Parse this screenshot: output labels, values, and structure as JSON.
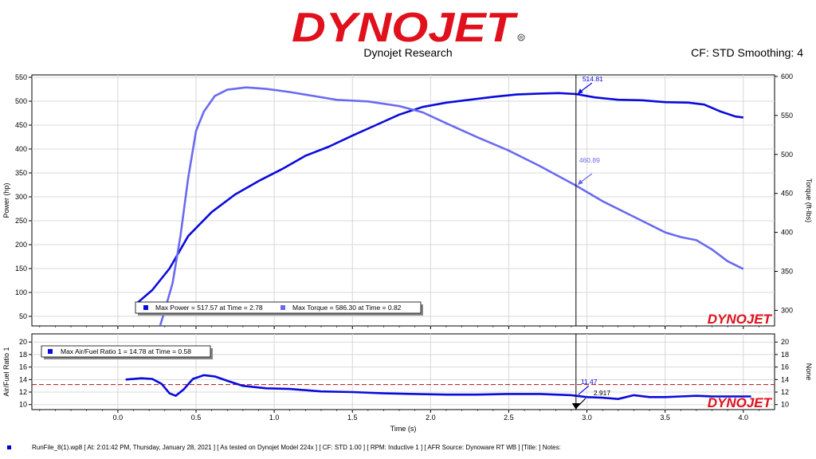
{
  "header": {
    "logo_text": "DYNOJET",
    "subtitle": "Dynojet Research",
    "cf_info": "CF: STD Smoothing: 4"
  },
  "colors": {
    "power": "#0a0adc",
    "torque": "#6a6af0",
    "afr": "#0a0adc",
    "logo_red": "#e0101c",
    "ref_line": "#b01010"
  },
  "footer": {
    "text": "RunFile_8(1).wp8  [ At: 2:01:42 PM, Thursday, January 28, 2021 ] [ As tested on Dynojet Model 224x ] [ CF: STD 1.00 ] [ RPM: Inductive 1 ] [ AFR Source: Dynoware RT WB ] [Title: ]   Notes:"
  },
  "chart_data": [
    {
      "type": "line",
      "xlabel": "Time (s)",
      "ylabel": "Power (hp)",
      "ylabel_right": "Torque (ft-lbs)",
      "xlim": [
        -0.55,
        4.2
      ],
      "ylim": [
        30,
        555
      ],
      "ylim_right": [
        280,
        602
      ],
      "x_ticks": [
        "0.0",
        "0.5",
        "1.0",
        "1.5",
        "2.0",
        "2.5",
        "3.0",
        "3.5",
        "4.0"
      ],
      "y_ticks": [
        "50",
        "100",
        "150",
        "200",
        "250",
        "300",
        "350",
        "400",
        "450",
        "500",
        "550"
      ],
      "y_ticks_right": [
        "300",
        "350",
        "400",
        "450",
        "500",
        "550",
        "600"
      ],
      "grid": true,
      "cursor_x": 2.93,
      "cursor_labels": [
        "514.81",
        "460.89"
      ],
      "legend": [
        "Max Power = 517.57 at Time = 2.78",
        "Max Torque = 586.30 at Time = 0.82"
      ],
      "watermark": "DYNOJET",
      "series": [
        {
          "name": "Power",
          "axis": "left",
          "x": [
            0.12,
            0.22,
            0.33,
            0.45,
            0.6,
            0.75,
            0.9,
            1.05,
            1.2,
            1.35,
            1.5,
            1.65,
            1.8,
            1.95,
            2.1,
            2.25,
            2.4,
            2.55,
            2.7,
            2.82,
            2.93,
            3.05,
            3.2,
            3.35,
            3.5,
            3.65,
            3.75,
            3.85,
            3.95,
            4.0
          ],
          "values": [
            77,
            105,
            150,
            218,
            268,
            305,
            333,
            358,
            386,
            405,
            428,
            450,
            472,
            488,
            497,
            503,
            509,
            514,
            516,
            517,
            515,
            508,
            503,
            502,
            498,
            497,
            493,
            479,
            468,
            466
          ]
        },
        {
          "name": "Torque",
          "axis": "right",
          "x": [
            0.27,
            0.3,
            0.35,
            0.4,
            0.45,
            0.5,
            0.55,
            0.62,
            0.7,
            0.82,
            0.95,
            1.1,
            1.25,
            1.4,
            1.6,
            1.8,
            1.95,
            2.1,
            2.3,
            2.5,
            2.7,
            2.93,
            3.1,
            3.3,
            3.5,
            3.6,
            3.7,
            3.8,
            3.9,
            4.0
          ],
          "values": [
            280,
            300,
            335,
            395,
            470,
            530,
            555,
            575,
            583,
            586,
            584,
            580,
            575,
            570,
            568,
            562,
            554,
            540,
            522,
            505,
            485,
            460,
            440,
            420,
            400,
            394,
            390,
            378,
            363,
            353
          ]
        }
      ]
    },
    {
      "type": "line",
      "xlabel": "Time (s)",
      "ylabel": "Air/Fuel Ratio 1",
      "ylabel_right": "None",
      "xlim": [
        -0.55,
        4.2
      ],
      "ylim": [
        9.2,
        21.3
      ],
      "ylim_right": [
        9.2,
        21.3
      ],
      "y_ticks": [
        "10",
        "12",
        "14",
        "16",
        "18",
        "20"
      ],
      "y_ticks_right": [
        "10",
        "12",
        "14",
        "16",
        "18",
        "20"
      ],
      "grid": true,
      "reference_line": 13.2,
      "cursor_x": 2.93,
      "cursor_labels": [
        "11.47",
        "2.917"
      ],
      "legend": [
        "Max Air/Fuel Ratio 1 = 14.78 at Time = 0.58"
      ],
      "watermark": "DYNOJET",
      "series": [
        {
          "name": "Air/Fuel Ratio 1",
          "axis": "left",
          "x": [
            0.05,
            0.15,
            0.22,
            0.28,
            0.33,
            0.37,
            0.42,
            0.48,
            0.55,
            0.62,
            0.7,
            0.8,
            0.95,
            1.1,
            1.3,
            1.5,
            1.7,
            1.9,
            2.1,
            2.3,
            2.5,
            2.7,
            2.9,
            3.0,
            3.1,
            3.2,
            3.3,
            3.4,
            3.5,
            3.6,
            3.7,
            3.8,
            4.05
          ],
          "values": [
            14.0,
            14.2,
            14.1,
            13.3,
            11.8,
            11.4,
            12.4,
            14.1,
            14.7,
            14.5,
            13.8,
            13.0,
            12.6,
            12.5,
            12.1,
            12.0,
            11.8,
            11.7,
            11.6,
            11.6,
            11.7,
            11.7,
            11.5,
            11.2,
            11.1,
            10.9,
            11.5,
            11.2,
            11.2,
            11.3,
            11.4,
            11.3,
            11.3
          ]
        }
      ]
    }
  ]
}
